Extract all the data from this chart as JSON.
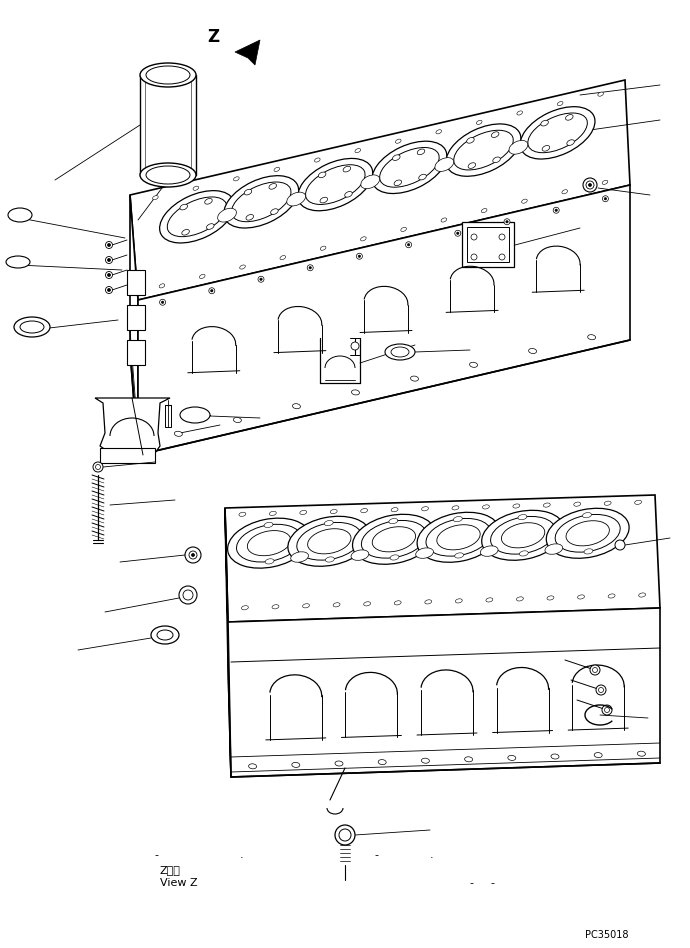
{
  "bg_color": "#ffffff",
  "line_color": "#000000",
  "fig_width": 6.9,
  "fig_height": 9.48,
  "dpi": 100,
  "label_z": "Z",
  "label_view_z_jp": "Z　視",
  "label_view_z_en": "View Z",
  "label_pc": "PC35018"
}
